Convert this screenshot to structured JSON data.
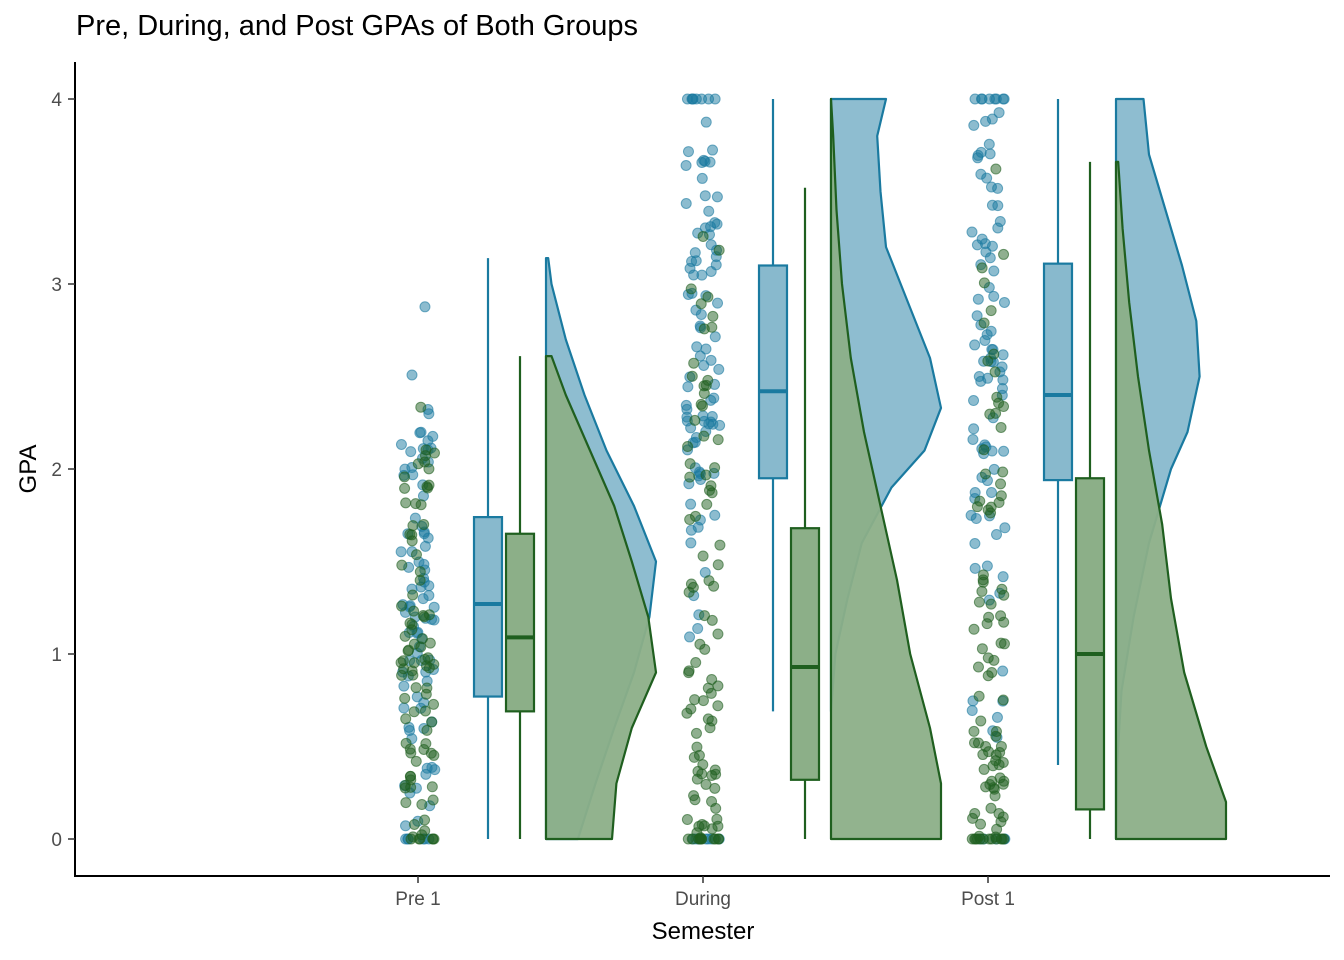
{
  "chart_data": {
    "type": "raincloud",
    "title": "Pre, During, and Post GPAs of Both Groups",
    "xlabel": "Semester",
    "ylabel": "GPA",
    "categories": [
      "Pre 1",
      "During",
      "Post 1"
    ],
    "ylim": [
      -0.19,
      4.19
    ],
    "yticks": [
      0,
      1,
      2,
      3,
      4
    ],
    "grid": false,
    "legend": "none",
    "point_opacity": 0.5,
    "series": [
      {
        "color": "#1a7aa0",
        "fill": "#88b9cd",
        "boxes": [
          {
            "category": "Pre 1",
            "whisker_low": 0,
            "q1": 0.77,
            "median": 1.27,
            "q3": 1.74,
            "whisker_high": 3.14
          },
          {
            "category": "During",
            "whisker_low": 0.69,
            "q1": 1.95,
            "median": 2.42,
            "q3": 3.1,
            "whisker_high": 4.0
          },
          {
            "category": "Post 1",
            "whisker_low": 0.4,
            "q1": 1.94,
            "median": 2.4,
            "q3": 3.11,
            "whisker_high": 4.0
          }
        ],
        "densities": [
          {
            "category": "Pre 1",
            "min": 0,
            "max": 3.14,
            "points": [
              [
                0,
                0.29
              ],
              [
                0.3,
                0.45
              ],
              [
                0.6,
                0.62
              ],
              [
                0.9,
                0.8
              ],
              [
                1.2,
                0.94
              ],
              [
                1.5,
                1.0
              ],
              [
                1.8,
                0.8
              ],
              [
                2.1,
                0.55
              ],
              [
                2.4,
                0.35
              ],
              [
                2.7,
                0.18
              ],
              [
                3.0,
                0.05
              ],
              [
                3.14,
                0.02
              ]
            ]
          },
          {
            "category": "During",
            "min": 0.69,
            "max": 4.0,
            "points": [
              [
                0.69,
                0
              ],
              [
                1.0,
                0.04
              ],
              [
                1.3,
                0.15
              ],
              [
                1.6,
                0.28
              ],
              [
                1.9,
                0.55
              ],
              [
                2.1,
                0.85
              ],
              [
                2.33,
                1.0
              ],
              [
                2.6,
                0.9
              ],
              [
                2.9,
                0.7
              ],
              [
                3.2,
                0.5
              ],
              [
                3.5,
                0.45
              ],
              [
                3.8,
                0.42
              ],
              [
                4.0,
                0.5
              ]
            ]
          },
          {
            "category": "Post 1",
            "min": 0,
            "max": 4.0,
            "points": [
              [
                0,
                0
              ],
              [
                0.4,
                0.01
              ],
              [
                0.8,
                0.05
              ],
              [
                1.2,
                0.16
              ],
              [
                1.6,
                0.3
              ],
              [
                2.0,
                0.5
              ],
              [
                2.2,
                0.65
              ],
              [
                2.5,
                0.76
              ],
              [
                2.8,
                0.73
              ],
              [
                3.1,
                0.6
              ],
              [
                3.4,
                0.45
              ],
              [
                3.7,
                0.3
              ],
              [
                4.0,
                0.25
              ]
            ]
          }
        ]
      },
      {
        "color": "#1f5f1f",
        "fill": "#8caf88",
        "boxes": [
          {
            "category": "Pre 1",
            "whisker_low": 0,
            "q1": 0.69,
            "median": 1.09,
            "q3": 1.65,
            "whisker_high": 2.61
          },
          {
            "category": "During",
            "whisker_low": 0,
            "q1": 0.32,
            "median": 0.93,
            "q3": 1.68,
            "whisker_high": 3.52
          },
          {
            "category": "Post 1",
            "whisker_low": 0,
            "q1": 0.16,
            "median": 1.0,
            "q3": 1.95,
            "whisker_high": 3.66
          }
        ],
        "densities": [
          {
            "category": "Pre 1",
            "min": 0,
            "max": 2.61,
            "points": [
              [
                0,
                0.6
              ],
              [
                0.3,
                0.64
              ],
              [
                0.6,
                0.78
              ],
              [
                0.9,
                1.0
              ],
              [
                1.2,
                0.93
              ],
              [
                1.5,
                0.78
              ],
              [
                1.8,
                0.62
              ],
              [
                2.1,
                0.4
              ],
              [
                2.4,
                0.18
              ],
              [
                2.61,
                0.05
              ]
            ]
          },
          {
            "category": "During",
            "min": 0,
            "max": 4.0,
            "points": [
              [
                0,
                1.0
              ],
              [
                0.3,
                1.0
              ],
              [
                0.6,
                0.9
              ],
              [
                1.0,
                0.72
              ],
              [
                1.4,
                0.6
              ],
              [
                1.8,
                0.45
              ],
              [
                2.2,
                0.3
              ],
              [
                2.6,
                0.18
              ],
              [
                3.0,
                0.1
              ],
              [
                3.4,
                0.05
              ],
              [
                3.8,
                0.02
              ],
              [
                4.0,
                0
              ]
            ]
          },
          {
            "category": "Post 1",
            "min": 0,
            "max": 3.66,
            "points": [
              [
                0,
                1.0
              ],
              [
                0.2,
                1.0
              ],
              [
                0.5,
                0.82
              ],
              [
                0.9,
                0.62
              ],
              [
                1.3,
                0.5
              ],
              [
                1.7,
                0.42
              ],
              [
                2.1,
                0.3
              ],
              [
                2.5,
                0.2
              ],
              [
                2.9,
                0.12
              ],
              [
                3.3,
                0.06
              ],
              [
                3.66,
                0.02
              ]
            ]
          }
        ]
      }
    ]
  }
}
